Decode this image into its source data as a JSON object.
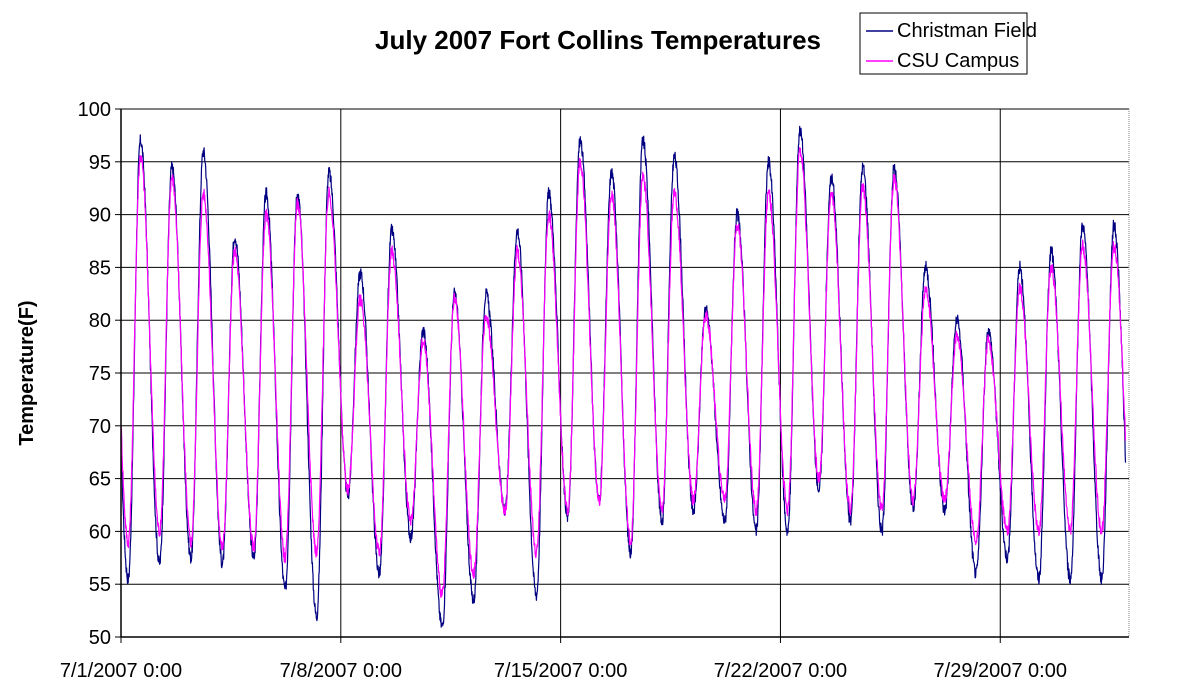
{
  "chart_data": {
    "type": "line",
    "title": "July 2007 Fort Collins Temperatures",
    "xlabel": "",
    "ylabel": "Temperature(F)",
    "ylim": [
      50,
      100
    ],
    "yticks": [
      "50",
      "55",
      "60",
      "65",
      "70",
      "75",
      "80",
      "85",
      "90",
      "95",
      "100"
    ],
    "xticks": [
      "7/1/2007 0:00",
      "7/8/2007 0:00",
      "7/15/2007 0:00",
      "7/22/2007 0:00",
      "7/29/2007 0:00"
    ],
    "x_unit": "day of July 2007 (1 = 7/1/2007 0:00)",
    "x_range": [
      1,
      33.1
    ],
    "grid": true,
    "legend_position": "top-right",
    "series": [
      {
        "name": "Christman Field",
        "color": "#000080",
        "daily_low": [
          55.5,
          57,
          57.5,
          57,
          57.5,
          54.5,
          52,
          63.5,
          56,
          59.5,
          51,
          53.5,
          62,
          54,
          61.5,
          63,
          58,
          61,
          62,
          61,
          60,
          60,
          64,
          61,
          60,
          62,
          62,
          56,
          57.5,
          55.5
        ],
        "daily_high": [
          97,
          94.5,
          96,
          88,
          92,
          92,
          94,
          84.5,
          88.5,
          79,
          82.5,
          82.5,
          88.5,
          92,
          97,
          94,
          97,
          95.5,
          81,
          90,
          95,
          98,
          93.5,
          94.5,
          94.5,
          85,
          80,
          79,
          85,
          86.5,
          89
        ]
      },
      {
        "name": "CSU Campus",
        "color": "#ff00ff",
        "daily_low": [
          59,
          60,
          59,
          58.5,
          58.5,
          57.5,
          58,
          64,
          58,
          61,
          54,
          56,
          62,
          58,
          62,
          63,
          59,
          62,
          63,
          63,
          62,
          62,
          65,
          62,
          62,
          63,
          63,
          59,
          60,
          60
        ],
        "daily_high": [
          95.5,
          93.5,
          92,
          86.5,
          90,
          91,
          92,
          82,
          86.5,
          78,
          82,
          80.5,
          86.5,
          90,
          95,
          92,
          93.5,
          92,
          80.5,
          89,
          92,
          96,
          92,
          92.5,
          93.5,
          83,
          78.5,
          78,
          83,
          85,
          87
        ]
      }
    ]
  }
}
